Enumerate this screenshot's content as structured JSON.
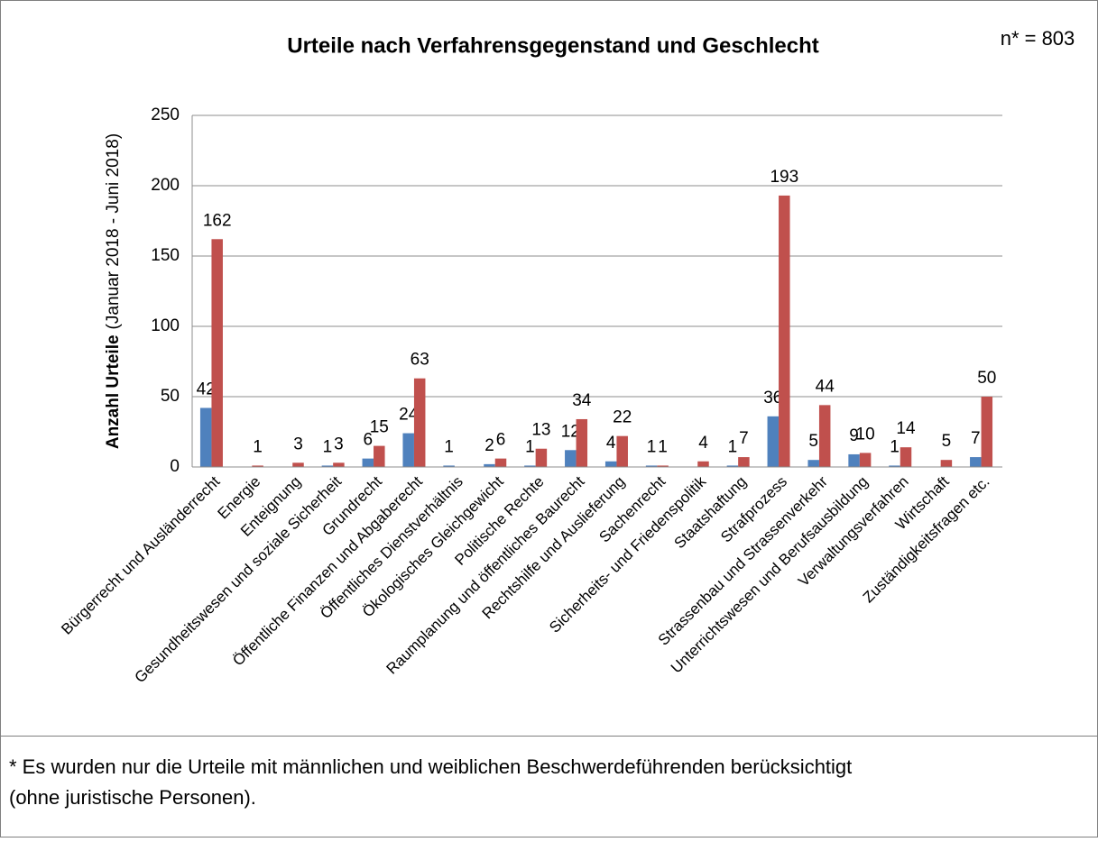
{
  "chart_data": {
    "type": "bar",
    "title": "Urteile nach Verfahrensgegenstand und Geschlecht",
    "annotation": "n* = 803",
    "ylabel": "Anzahl Urteile",
    "ylabel_note": "(Januar 2018 - Juni 2018)",
    "categories": [
      "Bürgerrecht und Ausländerrecht",
      "Energie",
      "Enteignung",
      "Gesundheitswesen und soziale Sicherheit",
      "Grundrecht",
      "Öffentliche Finanzen und Abgaberecht",
      "Öffentliches Dienstverhältnis",
      "Ökologisches Gleichgewicht",
      "Politische Rechte",
      "Raumplanung und öffentliches Baurecht",
      "Rechtshilfe und Auslieferung",
      "Sachenrecht",
      "Sicherheits- und Friedenspolitik",
      "Staatshaftung",
      "Strafprozess",
      "Strassenbau und Strassenverkehr",
      "Unterrichtswesen und Berufsausbildung",
      "Verwaltungsverfahren",
      "Wirtschaft",
      "Zuständigkeitsfragen etc."
    ],
    "series": [
      {
        "color": "#4f81bd",
        "values": [
          42,
          null,
          null,
          1,
          6,
          24,
          1,
          2,
          1,
          12,
          4,
          1,
          null,
          1,
          36,
          5,
          9,
          1,
          null,
          7
        ]
      },
      {
        "color": "#c0504d",
        "values": [
          162,
          1,
          3,
          3,
          15,
          63,
          null,
          6,
          13,
          34,
          22,
          1,
          4,
          7,
          193,
          44,
          10,
          14,
          5,
          50
        ]
      }
    ],
    "ylim": [
      0,
      250
    ],
    "yticks": [
      0,
      50,
      100,
      150,
      200,
      250
    ],
    "grid": true
  },
  "footnote": [
    "* Es wurden nur die Urteile mit männlichen und weiblichen Beschwerdeführenden berücksichtigt",
    "(ohne juristische Personen)."
  ]
}
